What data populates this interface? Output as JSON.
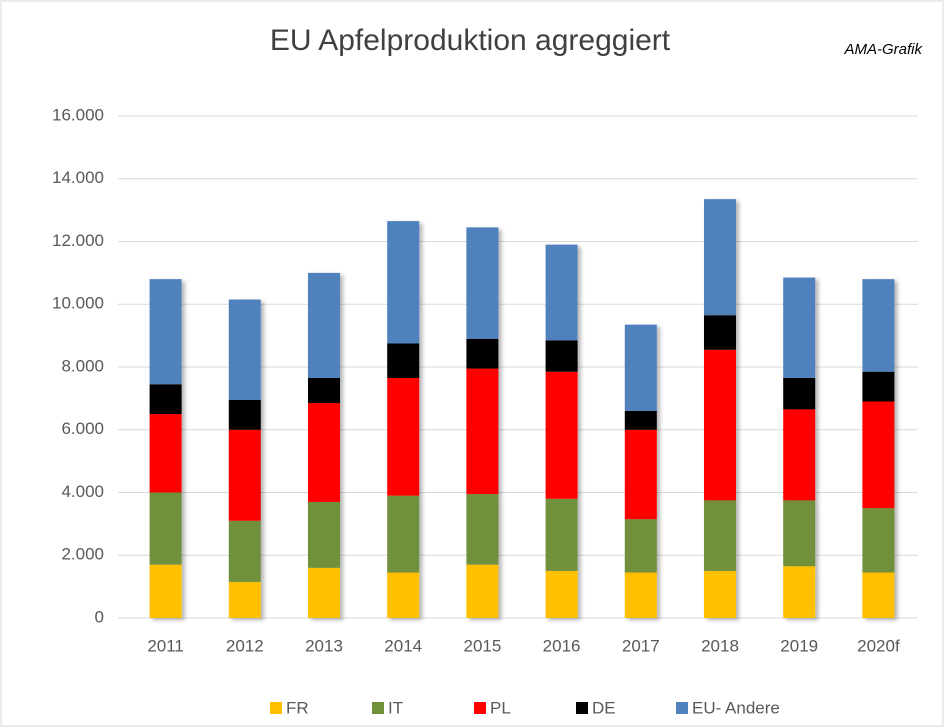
{
  "chart_data": {
    "type": "stacked_bar",
    "title": "EU Apfelproduktion agreggiert",
    "annotation": "AMA-Grafik",
    "categories": [
      "2011",
      "2012",
      "2013",
      "2014",
      "2015",
      "2016",
      "2017",
      "2018",
      "2019",
      "2020f"
    ],
    "series": [
      {
        "name": "FR",
        "color": "#ffc000",
        "values": [
          1700,
          1150,
          1600,
          1450,
          1700,
          1500,
          1450,
          1500,
          1650,
          1450
        ]
      },
      {
        "name": "IT",
        "color": "#70903a",
        "values": [
          2300,
          1950,
          2100,
          2450,
          2250,
          2300,
          1700,
          2250,
          2100,
          2050
        ]
      },
      {
        "name": "PL",
        "color": "#ff0000",
        "values": [
          2500,
          2900,
          3150,
          3750,
          4000,
          4050,
          2850,
          4800,
          2900,
          3400
        ]
      },
      {
        "name": "DE",
        "color": "#000000",
        "values": [
          950,
          950,
          800,
          1100,
          950,
          1000,
          600,
          1100,
          1000,
          950
        ]
      },
      {
        "name": "EU- Andere",
        "color": "#4f81bd",
        "values": [
          3350,
          3200,
          3350,
          3900,
          3550,
          3050,
          2750,
          3700,
          3200,
          2950
        ]
      }
    ],
    "ylim": [
      0,
      16000
    ],
    "yticks": [
      0,
      {
        "value": 2000,
        "label": "2.000"
      },
      {
        "value": 4000,
        "label": "4.000"
      },
      {
        "value": 6000,
        "label": "6.000"
      },
      {
        "value": 8000,
        "label": "8.000"
      },
      {
        "value": 10000,
        "label": "10.000"
      },
      {
        "value": 12000,
        "label": "12.000"
      },
      {
        "value": 14000,
        "label": "14.000"
      },
      {
        "value": 16000,
        "label": "16.000"
      }
    ],
    "grid": true,
    "legend": "bottom"
  }
}
